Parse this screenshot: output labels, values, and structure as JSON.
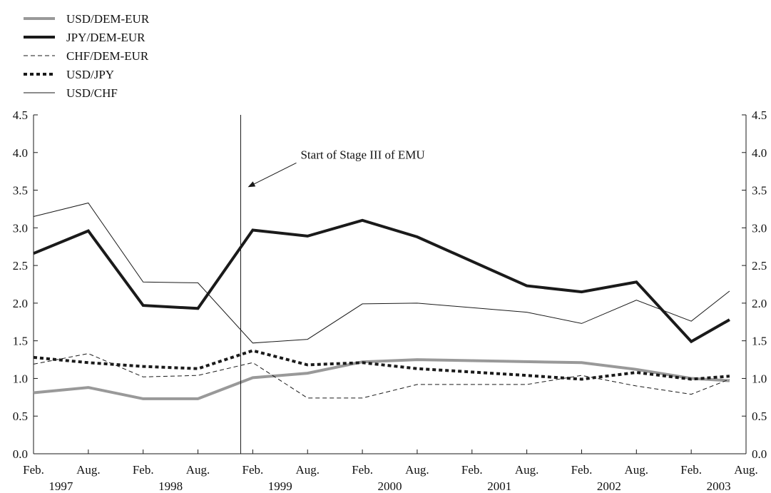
{
  "chart_data": {
    "type": "line",
    "title": "",
    "xlabel": "",
    "ylabel": "",
    "ylim": [
      0,
      4.5
    ],
    "yticks": [
      "0.0",
      "0.5",
      "1.0",
      "1.5",
      "2.0",
      "2.5",
      "3.0",
      "3.5",
      "4.0",
      "4.5"
    ],
    "xlim": [
      0,
      13
    ],
    "x_ticks": [
      {
        "pos": 0,
        "month": "Feb.",
        "year": "1997"
      },
      {
        "pos": 1,
        "month": "Aug.",
        "year": ""
      },
      {
        "pos": 2,
        "month": "Feb.",
        "year": "1998"
      },
      {
        "pos": 3,
        "month": "Aug.",
        "year": ""
      },
      {
        "pos": 4,
        "month": "Feb.",
        "year": "1999"
      },
      {
        "pos": 5,
        "month": "Aug.",
        "year": ""
      },
      {
        "pos": 6,
        "month": "Feb.",
        "year": "2000"
      },
      {
        "pos": 7,
        "month": "Aug.",
        "year": ""
      },
      {
        "pos": 8,
        "month": "Feb.",
        "year": "2001"
      },
      {
        "pos": 9,
        "month": "Aug.",
        "year": ""
      },
      {
        "pos": 10,
        "month": "Feb.",
        "year": "2002"
      },
      {
        "pos": 11,
        "month": "Aug.",
        "year": ""
      },
      {
        "pos": 12,
        "month": "Feb.",
        "year": "2003"
      },
      {
        "pos": 13,
        "month": "Aug.",
        "year": ""
      }
    ],
    "legend_position": "top-left",
    "grid": false,
    "series": [
      {
        "name": "USD/DEM-EUR",
        "color": "#999999",
        "style": "thick",
        "x": [
          0,
          1,
          2,
          3,
          4,
          5,
          6,
          7,
          10,
          11,
          12,
          12.7
        ],
        "y": [
          0.81,
          0.88,
          0.73,
          0.73,
          1.01,
          1.07,
          1.22,
          1.25,
          1.21,
          1.12,
          1.0,
          0.97
        ]
      },
      {
        "name": "JPY/DEM-EUR",
        "color": "#1a1a1a",
        "style": "thick",
        "x": [
          0,
          1,
          2,
          3,
          4,
          5,
          6,
          7,
          9,
          10,
          11,
          12,
          12.7
        ],
        "y": [
          2.66,
          2.96,
          1.97,
          1.93,
          2.97,
          2.89,
          3.1,
          2.88,
          2.23,
          2.15,
          2.28,
          1.49,
          1.78
        ]
      },
      {
        "name": "CHF/DEM-EUR",
        "color": "#1a1a1a",
        "style": "dashed",
        "x": [
          0,
          1,
          2,
          3,
          4,
          5,
          6,
          7,
          9,
          10,
          11,
          12,
          12.7
        ],
        "y": [
          1.19,
          1.33,
          1.02,
          1.04,
          1.21,
          0.74,
          0.74,
          0.92,
          0.92,
          1.04,
          0.9,
          0.79,
          0.99
        ]
      },
      {
        "name": "USD/JPY",
        "color": "#1a1a1a",
        "style": "dotted",
        "x": [
          0,
          1,
          2,
          3,
          4,
          5,
          6,
          7,
          9,
          10,
          11,
          12,
          12.7
        ],
        "y": [
          1.28,
          1.21,
          1.16,
          1.13,
          1.37,
          1.18,
          1.21,
          1.13,
          1.04,
          0.99,
          1.08,
          0.99,
          1.03
        ]
      },
      {
        "name": "USD/CHF",
        "color": "#1a1a1a",
        "style": "thin",
        "x": [
          0,
          1,
          2,
          3,
          4,
          5,
          6,
          7,
          9,
          10,
          11,
          12,
          12.7
        ],
        "y": [
          3.15,
          3.33,
          2.28,
          2.27,
          1.47,
          1.52,
          1.99,
          2.0,
          1.88,
          1.73,
          2.04,
          1.76,
          2.16
        ]
      }
    ],
    "vline": {
      "x": 3.78
    },
    "annotation": {
      "text": "Start of Stage III of EMU",
      "x": 3.78,
      "y": 3.55
    }
  }
}
